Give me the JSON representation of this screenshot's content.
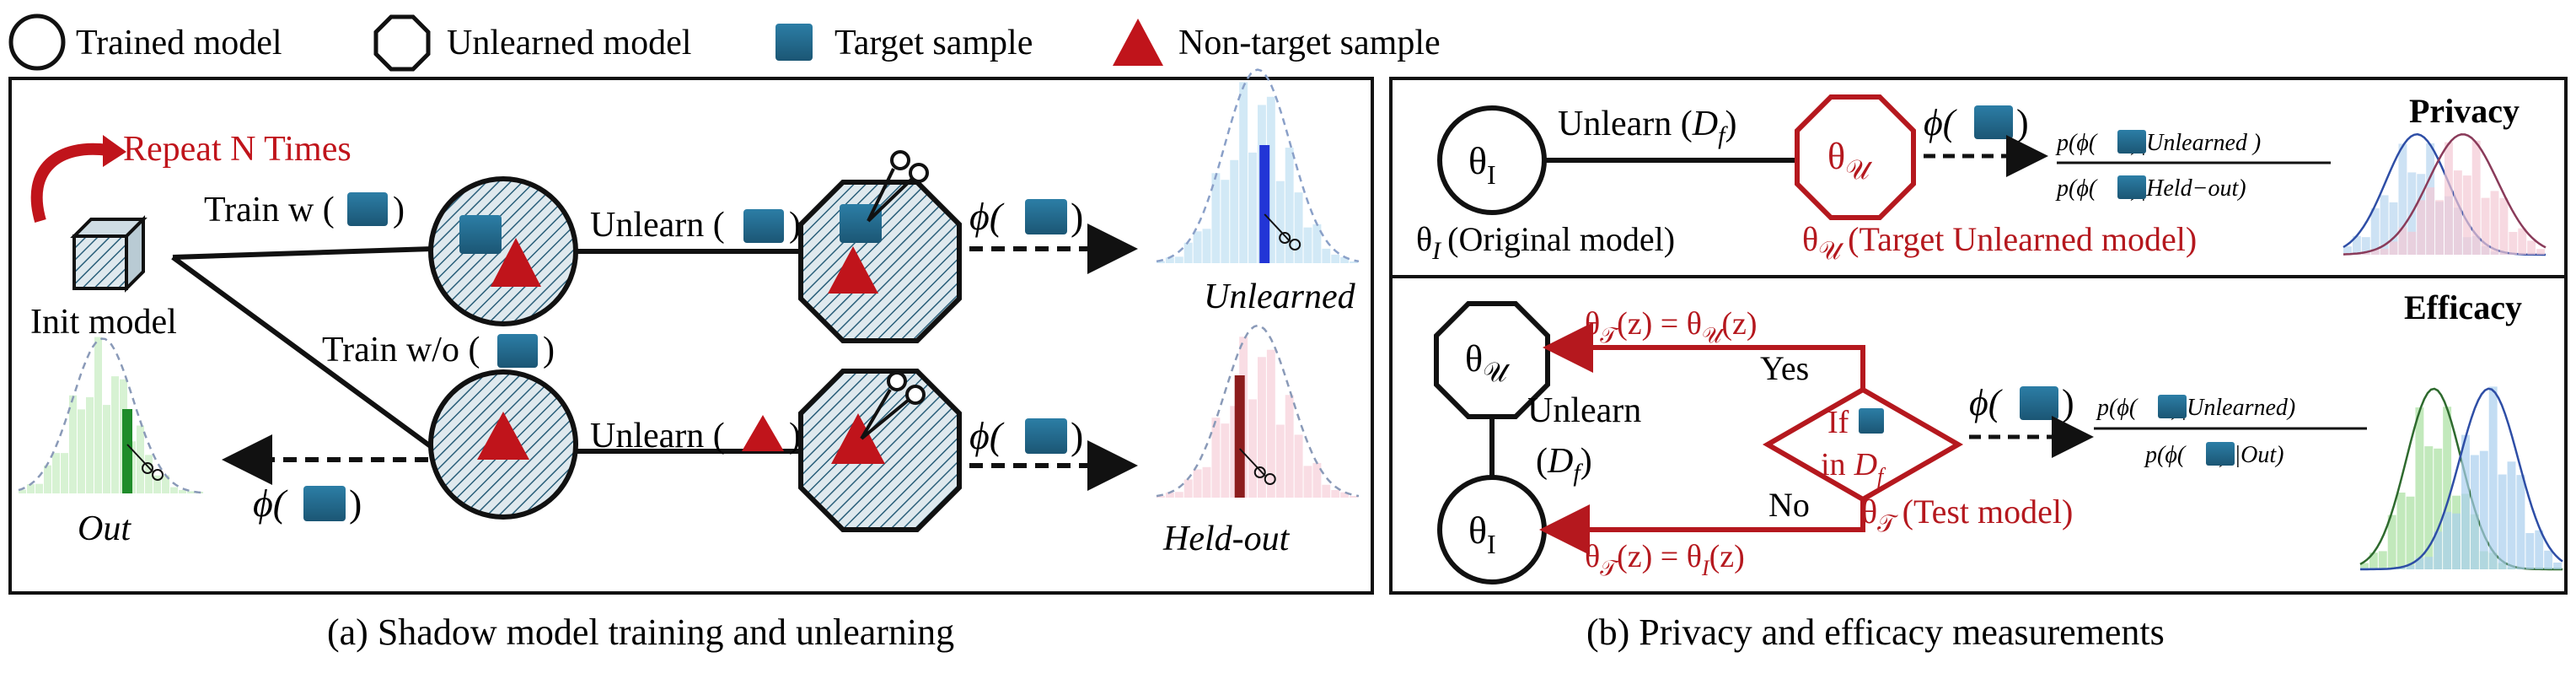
{
  "legend": {
    "trained_model": "Trained model",
    "unlearned_model": "Unlearned model",
    "target_sample": "Target sample",
    "non_target_sample": "Non-target sample"
  },
  "panel_a": {
    "caption": "(a) Shadow model training and unlearning",
    "repeat": "Repeat N Times",
    "init_model": "Init model",
    "train_w": "Train w (",
    "train_wo": "Train w/o (",
    "close_paren": ")",
    "unlearn_open": "Unlearn (",
    "phi_open": "ϕ(",
    "unlearned_label": "Unlearned",
    "heldout_label": "Held-out",
    "out_label": "Out"
  },
  "panel_b": {
    "caption": "(b) Privacy and efficacy measurements",
    "privacy_title": "Privacy",
    "efficacy_title": "Efficacy",
    "theta_i": "θ",
    "sub_i": "I",
    "theta_u": "θ",
    "sub_u": "𝒰",
    "unlearn_df_prefix": "Unlearn (",
    "df": "D",
    "df_sub": "f",
    "original_model": "(Original model)",
    "target_unlearned": "(Target Unlearned model)",
    "ratio_priv_num_a": "p(ϕ(",
    "ratio_priv_num_b": ")|Unlearned )",
    "ratio_priv_den_a": "p(ϕ(",
    "ratio_priv_den_b": ")|Held−out)",
    "ratio_eff_num_a": "p(ϕ(",
    "ratio_eff_num_b": ")|Unlearned)",
    "ratio_eff_den_a": "p(ϕ(",
    "ratio_eff_den_b": ") |Out)",
    "yes": "Yes",
    "no": "No",
    "if": "If",
    "in": "in",
    "test_model": "(Test model)",
    "eq_top": "θ",
    "eq_top_b": "(z) = θ",
    "eq_top_c": "(z)",
    "eq_bot": "θ",
    "eq_bot_b": "(z) = θ",
    "eq_bot_c": "(z)",
    "sub_t": "𝒯",
    "unlearn_word": "Unlearn"
  },
  "colors": {
    "target_blue": "#1f6a8f",
    "nontarget_red": "#c0141b",
    "accent_red": "#b5181e",
    "hatch_blue": "#2a6c8a"
  }
}
